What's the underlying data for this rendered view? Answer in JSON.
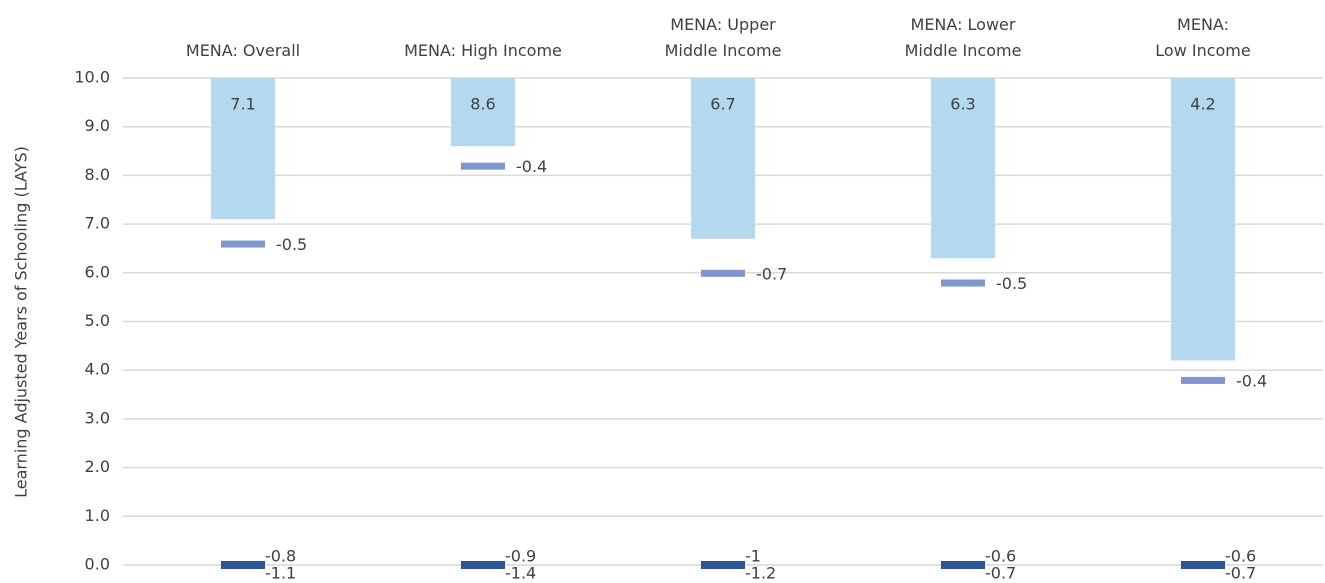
{
  "chart_data": {
    "type": "waterfall",
    "y_label": "Learning Adjusted Years of Schooling (LAYS)",
    "categories": [
      "MENA: Overall",
      "MENA: High Income",
      "MENA: Upper\nMiddle Income",
      "MENA: Lower\nMiddle Income",
      "MENA:\nLow Income"
    ],
    "series": [
      {
        "color": "#b4d9ee",
        "values": [
          7.1,
          8.6,
          6.7,
          6.3,
          4.2
        ]
      },
      {
        "color": "#7f96cf",
        "values": [
          -0.5,
          -0.4,
          -0.7,
          -0.5,
          -0.4
        ]
      },
      {
        "color": "#2f5597",
        "values": [
          -0.8,
          -0.9,
          -1.0,
          -0.6,
          -0.6
        ]
      },
      {
        "color": "#2f5597",
        "values": [
          -1.1,
          -1.4,
          -1.2,
          -0.7,
          -0.7
        ]
      }
    ],
    "ylim": [
      0,
      10
    ],
    "yticks": [
      {
        "value": 0,
        "label": "0.0"
      },
      {
        "value": 1,
        "label": "1.0"
      },
      {
        "value": 2,
        "label": "2.0"
      },
      {
        "value": 3,
        "label": "3.0"
      },
      {
        "value": 4,
        "label": "4.0"
      },
      {
        "value": 5,
        "label": "5.0"
      },
      {
        "value": 6,
        "label": "6.0"
      },
      {
        "value": 7,
        "label": "7.0"
      },
      {
        "value": 8,
        "label": "8.0"
      },
      {
        "value": 9,
        "label": "9.0"
      },
      {
        "value": 10,
        "label": "10.0"
      }
    ],
    "grid": true
  }
}
